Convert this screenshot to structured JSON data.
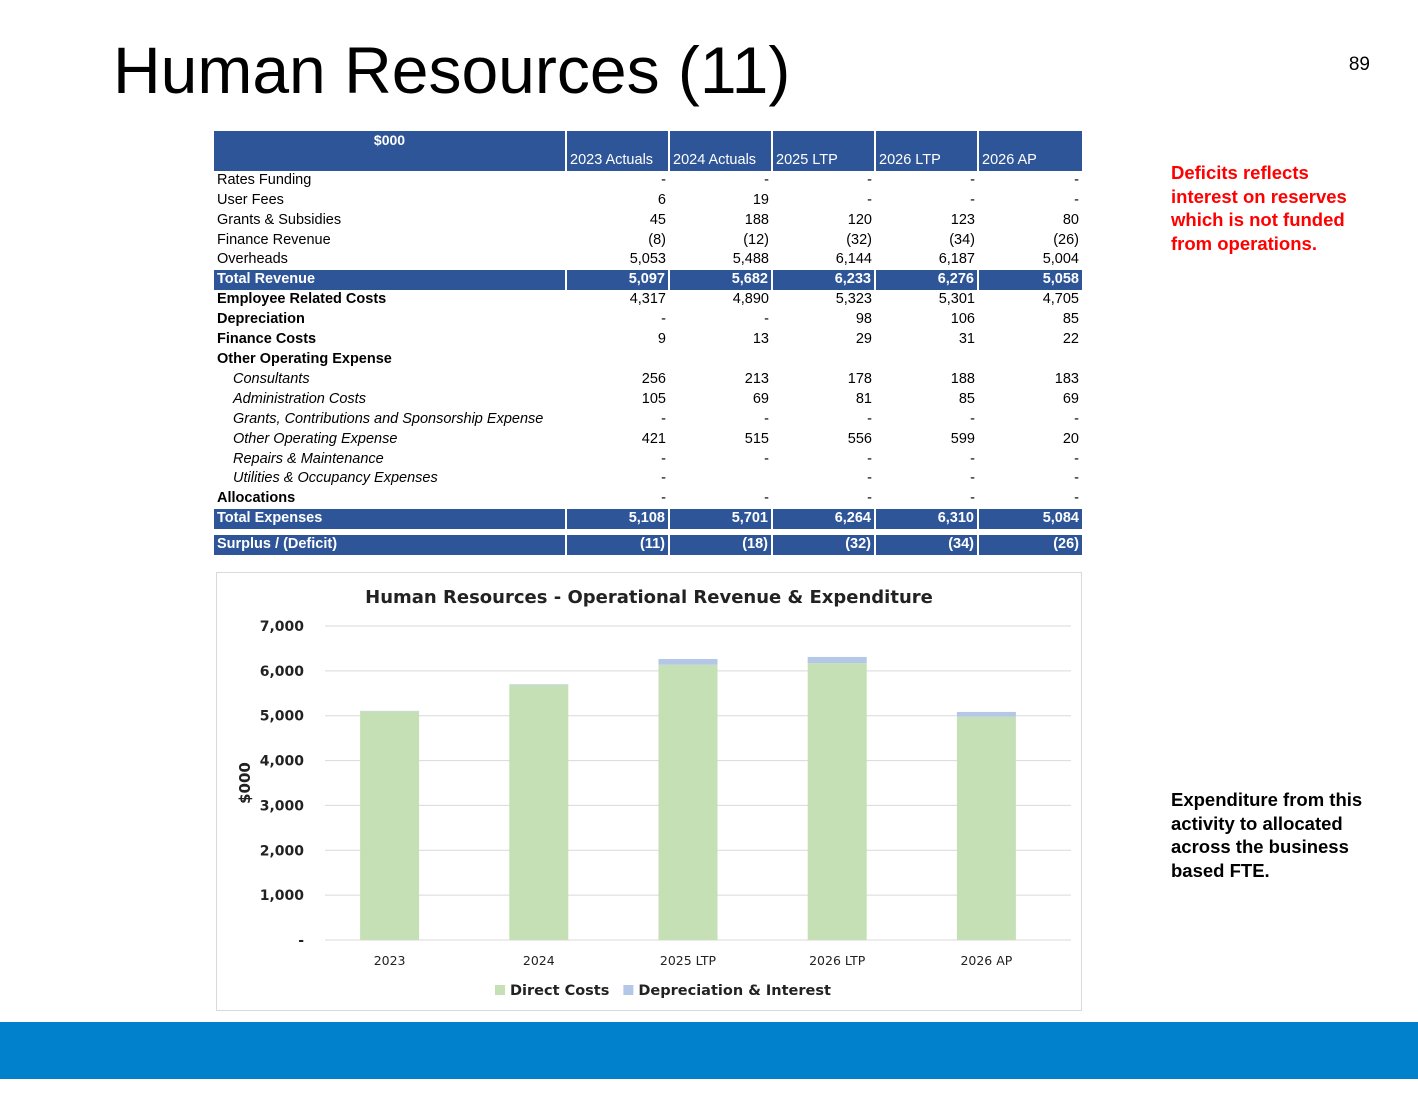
{
  "slide": {
    "title": "Human Resources (11)",
    "page_number": "89"
  },
  "table": {
    "unit_label": "$000",
    "columns": [
      "2023 Actuals",
      "2024 Actuals",
      "2025 LTP",
      "2026 LTP",
      "2026 AP"
    ],
    "rows": [
      {
        "label": "Rates Funding",
        "style": "normal",
        "values": [
          "-",
          "-",
          "-",
          "-",
          "-"
        ]
      },
      {
        "label": "User Fees",
        "style": "normal",
        "values": [
          "6",
          "19",
          "-",
          "-",
          "-"
        ]
      },
      {
        "label": "Grants & Subsidies",
        "style": "normal",
        "values": [
          "45",
          "188",
          "120",
          "123",
          "80"
        ]
      },
      {
        "label": "Finance Revenue",
        "style": "normal",
        "values": [
          "(8)",
          "(12)",
          "(32)",
          "(34)",
          "(26)"
        ]
      },
      {
        "label": "Overheads",
        "style": "normal",
        "values": [
          "5,053",
          "5,488",
          "6,144",
          "6,187",
          "5,004"
        ]
      },
      {
        "label": "Total Revenue",
        "style": "total",
        "values": [
          "5,097",
          "5,682",
          "6,233",
          "6,276",
          "5,058"
        ]
      },
      {
        "label": "Employee Related Costs",
        "style": "bold",
        "values": [
          "4,317",
          "4,890",
          "5,323",
          "5,301",
          "4,705"
        ]
      },
      {
        "label": "Depreciation",
        "style": "bold",
        "values": [
          "-",
          "-",
          "98",
          "106",
          "85"
        ]
      },
      {
        "label": "Finance Costs",
        "style": "bold",
        "values": [
          "9",
          "13",
          "29",
          "31",
          "22"
        ]
      },
      {
        "label": "Other Operating  Expense",
        "style": "bold",
        "values": [
          "",
          "",
          "",
          "",
          ""
        ]
      },
      {
        "label": "Consultants",
        "style": "sub",
        "values": [
          "256",
          "213",
          "178",
          "188",
          "183"
        ]
      },
      {
        "label": "Administration Costs",
        "style": "sub",
        "values": [
          "105",
          "69",
          "81",
          "85",
          "69"
        ]
      },
      {
        "label": "Grants, Contributions and Sponsorship Expense",
        "style": "sub",
        "values": [
          "-",
          "-",
          "-",
          "-",
          "-"
        ]
      },
      {
        "label": "Other Operating Expense",
        "style": "sub",
        "values": [
          "421",
          "515",
          "556",
          "599",
          "20"
        ]
      },
      {
        "label": "Repairs & Maintenance",
        "style": "sub",
        "values": [
          "-",
          "-",
          "-",
          "-",
          "-"
        ]
      },
      {
        "label": "Utilities & Occupancy Expenses",
        "style": "sub",
        "values": [
          "-",
          "",
          "-",
          "-",
          "-"
        ]
      },
      {
        "label": "Allocations",
        "style": "bold",
        "values": [
          "-",
          "-",
          "-",
          "-",
          "-"
        ]
      },
      {
        "label": "Total Expenses",
        "style": "total",
        "values": [
          "5,108",
          "5,701",
          "6,264",
          "6,310",
          "5,084"
        ]
      },
      {
        "label": "",
        "style": "gap",
        "values": [
          "",
          "",
          "",
          "",
          ""
        ]
      },
      {
        "label": "Surplus / (Deficit)",
        "style": "total",
        "values": [
          "(11)",
          "(18)",
          "(32)",
          "(34)",
          "(26)"
        ]
      }
    ]
  },
  "chart_data": {
    "type": "bar",
    "stacked": true,
    "title": "Human Resources - Operational Revenue & Expenditure",
    "xlabel": "",
    "ylabel": "$000",
    "categories": [
      "2023",
      "2024",
      "2025 LTP",
      "2026 LTP",
      "2026 AP"
    ],
    "series": [
      {
        "name": "Direct Costs",
        "color": "#c5e0b4",
        "values": [
          5099,
          5688,
          6137,
          6173,
          4977
        ]
      },
      {
        "name": "Depreciation & Interest",
        "color": "#b4c7e7",
        "values": [
          9,
          13,
          127,
          137,
          107
        ]
      }
    ],
    "ylim": [
      0,
      7000
    ],
    "yticks": [
      0,
      1000,
      2000,
      3000,
      4000,
      5000,
      6000,
      7000
    ],
    "ytick_labels": [
      "-",
      "1,000",
      "2,000",
      "3,000",
      "4,000",
      "5,000",
      "6,000",
      "7,000"
    ],
    "grid": true,
    "legend_position": "bottom"
  },
  "notes": {
    "deficit": "Deficits reflects interest on reserves which is not funded from operations.",
    "expenditure": "Expenditure from this activity to allocated across the business based FTE."
  },
  "colors": {
    "header_blue": "#2e5597",
    "footer_blue": "#0180cc",
    "note_red": "#ff0000"
  }
}
